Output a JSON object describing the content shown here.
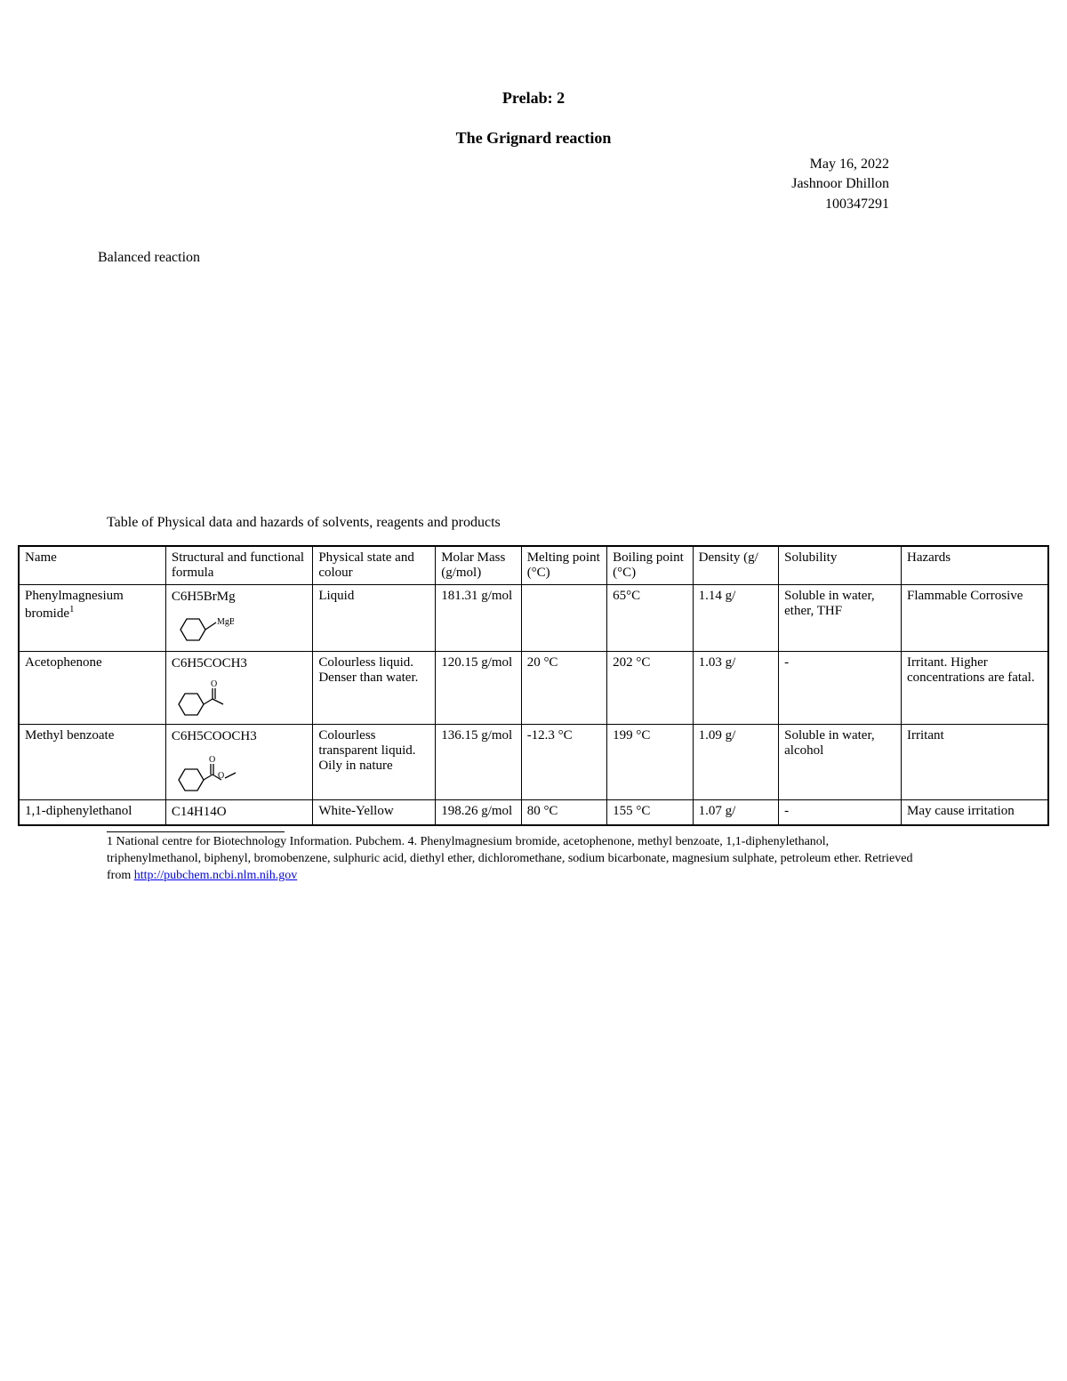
{
  "header": {
    "prelab_label": "Prelab: 2",
    "title": "The Grignard reaction",
    "date": "May 16, 2022",
    "author": "Jashnoor Dhillon",
    "student_id": "100347291"
  },
  "section": {
    "balanced_reaction": "Balanced reaction",
    "table_caption": "Table of Physical data and hazards of solvents, reagents and products"
  },
  "table": {
    "columns": [
      "Name",
      "Structural and functional formula",
      "Physical state and colour",
      "Molar Mass (g/mol)",
      "Melting point (°C)",
      "Boiling point (°C)",
      "Density (g/",
      "Solubility",
      "Hazards"
    ],
    "col_widths_pct": [
      12,
      12,
      10,
      7,
      7,
      7,
      7,
      10,
      12
    ],
    "rows": [
      {
        "name": "Phenylmagnesium bromide",
        "name_sup": "1",
        "formula": "C6H5BrMg",
        "structure": "phenyl-mgbr",
        "state": "Liquid",
        "molar_mass": "181.31 g/mol",
        "mp": "",
        "bp": "65°C",
        "density": "1.14 g/",
        "solubility": "Soluble in water, ether, THF",
        "hazards": "Flammable Corrosive"
      },
      {
        "name": "Acetophenone",
        "name_sup": "",
        "formula": "C6H5COCH3",
        "structure": "acetophenone",
        "state": "Colourless liquid. Denser than water.",
        "molar_mass": "120.15 g/mol",
        "mp": "20 °C",
        "bp": "202 °C",
        "density": "1.03 g/",
        "solubility": "-",
        "hazards": "Irritant. Higher concentrations are fatal."
      },
      {
        "name": "Methyl benzoate",
        "name_sup": "",
        "formula": "C6H5COOCH3",
        "structure": "methyl-benzoate",
        "state": "Colourless transparent liquid. Oily in nature",
        "molar_mass": "136.15 g/mol",
        "mp": "-12.3 °C",
        "bp": "199 °C",
        "density": "1.09 g/",
        "solubility": "Soluble in water, alcohol",
        "hazards": "Irritant"
      },
      {
        "name": "1,1-diphenylethanol",
        "name_sup": "",
        "formula": "C14H14O",
        "structure": "",
        "state": "White-Yellow",
        "molar_mass": "198.26 g/mol",
        "mp": "80 °C",
        "bp": "155 °C",
        "density": "1.07 g/",
        "solubility": "-",
        "hazards": "May cause irritation"
      }
    ]
  },
  "footnote": {
    "text": "1 National centre for Biotechnology Information. Pubchem. 4. Phenylmagnesium bromide, acetophenone, methyl benzoate, 1,1-diphenylethanol, triphenylmethanol, biphenyl, bromobenzene, sulphuric acid, diethyl ether, dichloromethane, sodium bicarbonate, magnesium sulphate, petroleum ether. Retrieved from ",
    "link_text": "http://pubchem.ncbi.nlm.nih.gov"
  }
}
